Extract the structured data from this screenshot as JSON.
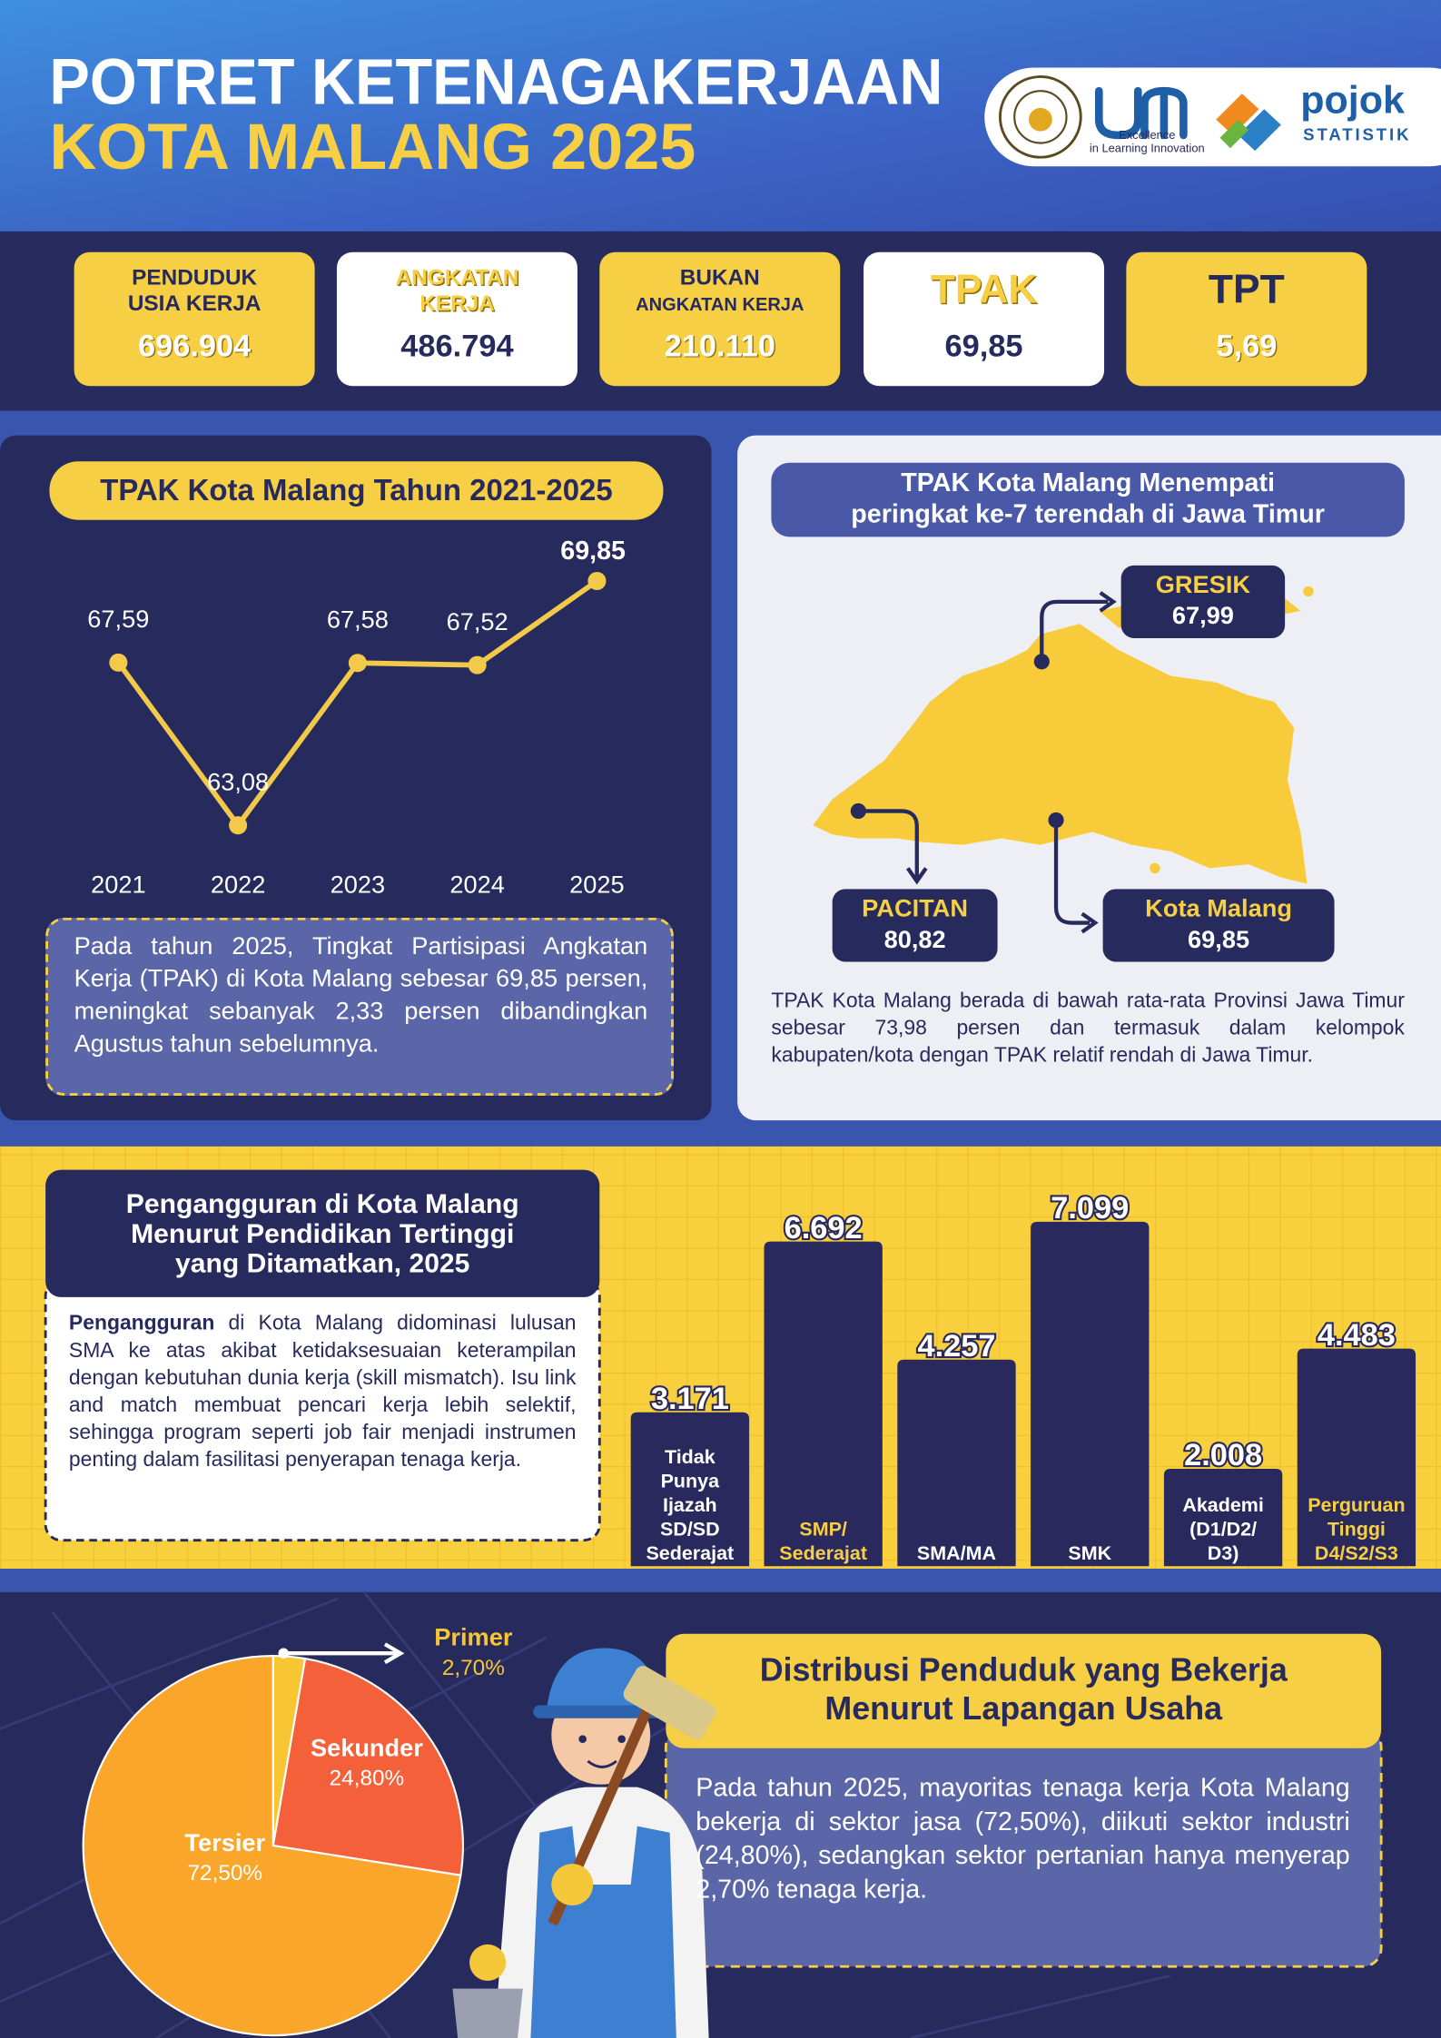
{
  "header": {
    "title_line1": "POTRET KETENAGAKERJAAN",
    "title_line2": "KOTA MALANG 2025",
    "logo_um_tagline": [
      "Excellence",
      "in Learning Innovation"
    ],
    "logo_pojok": "pojok",
    "logo_statistik": "STATISTIK"
  },
  "stats": [
    {
      "label": [
        "PENDUDUK",
        "USIA KERJA"
      ],
      "value": "696.904"
    },
    {
      "label": [
        "ANGKATAN",
        "KERJA"
      ],
      "value": "486.794"
    },
    {
      "label": [
        "BUKAN",
        "ANGKATAN KERJA"
      ],
      "value": "210.110"
    },
    {
      "label": [
        "TPAK"
      ],
      "value": "69,85"
    },
    {
      "label": [
        "TPT"
      ],
      "value": "5,69"
    }
  ],
  "map": {
    "title": [
      "TPAK Kota Malang Menempati",
      "peringkat ke-7 terendah di Jawa Timur"
    ],
    "callouts": [
      {
        "name": "GRESIK",
        "value": "67,99"
      },
      {
        "name": "PACITAN",
        "value": "80,82"
      },
      {
        "name": "Kota Malang",
        "value": "69,85"
      }
    ],
    "note": "TPAK Kota Malang berada di bawah rata-rata Provinsi Jawa Timur sebesar 73,98 persen dan termasuk dalam kelompok kabupaten/kota dengan TPAK relatif rendah di Jawa Timur."
  },
  "chart_data": [
    {
      "type": "line",
      "title": "TPAK Kota Malang Tahun 2021-2025",
      "categories": [
        "2021",
        "2022",
        "2023",
        "2024",
        "2025"
      ],
      "values": [
        67.59,
        63.08,
        67.58,
        67.52,
        69.85
      ],
      "value_labels": [
        "67,59",
        "63,08",
        "67,58",
        "67,52",
        "69,85"
      ],
      "color": "#f3c94a",
      "note": "Pada tahun 2025, Tingkat Partisipasi Angkatan Kerja (TPAK) di Kota Malang sebesar 69,85 persen, meningkat sebanyak 2,33 persen dibandingkan Agustus tahun sebelumnya."
    },
    {
      "type": "bar",
      "title": [
        "Pengangguran di Kota Malang",
        "Menurut Pendidikan Tertinggi",
        "yang Ditamatkan, 2025"
      ],
      "categories": [
        [
          "Tidak",
          "Punya",
          "Ijazah",
          "SD/SD",
          "Sederajat"
        ],
        [
          "SMP/",
          "Sederajat"
        ],
        [
          "SMA/MA"
        ],
        [
          "SMK"
        ],
        [
          "Akademi",
          "(D1/D2/",
          "D3)"
        ],
        [
          "Perguruan",
          "Tinggi",
          "D4/S2/S3"
        ]
      ],
      "values": [
        3171,
        6692,
        4257,
        7099,
        2008,
        4483
      ],
      "value_labels": [
        "3.171",
        "6.692",
        "4.257",
        "7.099",
        "2.008",
        "4.483"
      ],
      "color": "#29295e",
      "label_colors": [
        "#ffffff",
        "#f7cf44",
        "#ffffff",
        "#ffffff",
        "#ffffff",
        "#f7cf44"
      ],
      "body_bold": "Pengangguran",
      "body": "di Kota Malang didominasi lulusan SMA ke atas akibat ketidaksesuaian keterampilan dengan kebutuhan dunia kerja (skill mismatch). Isu link and match membuat pencari kerja lebih selektif, sehingga program seperti job fair menjadi instrumen penting dalam fasilitasi penyerapan tenaga kerja."
    },
    {
      "type": "pie",
      "title": [
        "Distribusi Penduduk yang Bekerja",
        "Menurut Lapangan Usaha"
      ],
      "categories": [
        "Primer",
        "Sekunder",
        "Tersier"
      ],
      "values": [
        2.7,
        24.8,
        72.5
      ],
      "value_labels": [
        "2,70%",
        "24,80%",
        "72,50%"
      ],
      "colors": [
        "#f7c632",
        "#f4603a",
        "#f9a62b"
      ],
      "note": "Pada tahun 2025, mayoritas tenaga kerja Kota Malang bekerja di sektor jasa (72,50%), diikuti sektor industri (24,80%), sedangkan sektor pertanian hanya menyerap 2,70% tenaga kerja."
    }
  ]
}
